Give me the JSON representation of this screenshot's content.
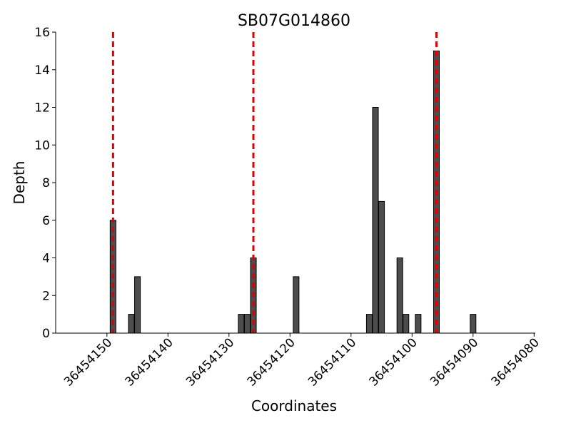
{
  "chart_data": {
    "type": "bar",
    "title": "SB07G014860",
    "xlabel": "Coordinates",
    "ylabel": "Depth",
    "x": [
      36454149,
      36454146,
      36454145,
      36454128,
      36454127,
      36454126,
      36454119,
      36454107,
      36454106,
      36454105,
      36454102,
      36454101,
      36454099,
      36454096,
      36454090
    ],
    "values": [
      6,
      1,
      3,
      1,
      1,
      4,
      3,
      1,
      12,
      7,
      4,
      1,
      1,
      15,
      1
    ],
    "color": "#4d4d4d",
    "vlines": [
      36454149,
      36454126,
      36454096
    ],
    "vline_color": "#dd0000",
    "xlim": [
      36454158.4,
      36454079.8
    ],
    "xticks": [
      36454150,
      36454140,
      36454130,
      36454120,
      36454110,
      36454100,
      36454090,
      36454080
    ],
    "ylim": [
      0,
      16
    ],
    "yticks": [
      0,
      2,
      4,
      6,
      8,
      10,
      12,
      14,
      16
    ]
  }
}
